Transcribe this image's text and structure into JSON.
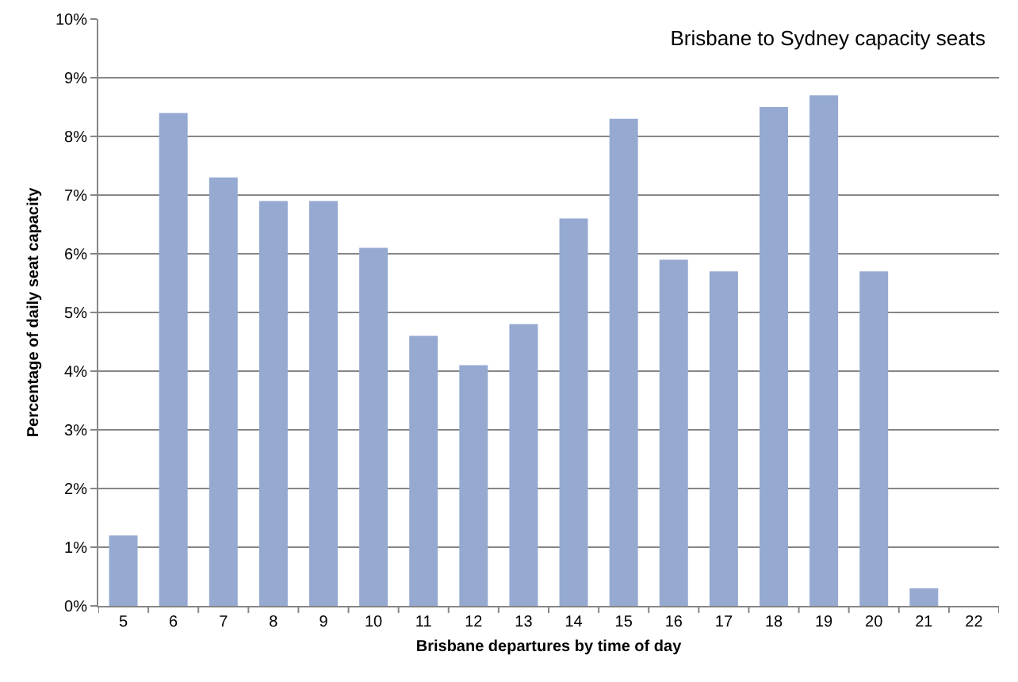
{
  "chart_data": {
    "type": "bar",
    "title": "Brisbane to Sydney capacity seats",
    "xlabel": "Brisbane departures by time of day",
    "ylabel": "Percentage of daily seat capacity",
    "categories": [
      "5",
      "6",
      "7",
      "8",
      "9",
      "10",
      "11",
      "12",
      "13",
      "14",
      "15",
      "16",
      "17",
      "18",
      "19",
      "20",
      "21",
      "22"
    ],
    "values": [
      1.2,
      8.4,
      7.3,
      6.9,
      6.9,
      6.1,
      4.6,
      4.1,
      4.8,
      6.6,
      8.3,
      5.9,
      5.7,
      8.5,
      8.7,
      5.7,
      0.3,
      0
    ],
    "color": "#95a9d1",
    "ylim": [
      0,
      10
    ],
    "yticks": [
      {
        "value": 0,
        "label": "0%"
      },
      {
        "value": 1,
        "label": "1%"
      },
      {
        "value": 2,
        "label": "2%"
      },
      {
        "value": 3,
        "label": "3%"
      },
      {
        "value": 4,
        "label": "4%"
      },
      {
        "value": 5,
        "label": "5%"
      },
      {
        "value": 6,
        "label": "6%"
      },
      {
        "value": 7,
        "label": "7%"
      },
      {
        "value": 8,
        "label": "8%"
      },
      {
        "value": 9,
        "label": "9%"
      },
      {
        "value": 10,
        "label": "10%"
      }
    ],
    "grid": "y"
  }
}
